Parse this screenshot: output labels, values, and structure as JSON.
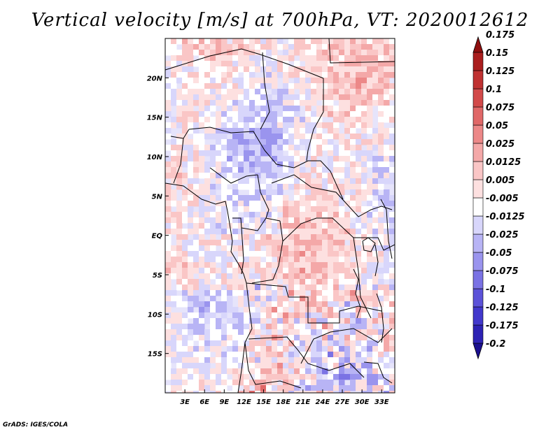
{
  "title": "Vertical velocity [m/s] at 700hPa, VT: 2020012612",
  "credit": "GrADS: IGES/COLA",
  "map": {
    "lon_range": [
      0,
      35
    ],
    "lat_range": [
      -20,
      25
    ],
    "lat_ticks": [
      {
        "lat": 20,
        "label": "20N"
      },
      {
        "lat": 15,
        "label": "15N"
      },
      {
        "lat": 10,
        "label": "10N"
      },
      {
        "lat": 5,
        "label": "5N"
      },
      {
        "lat": 0,
        "label": "EQ"
      },
      {
        "lat": -5,
        "label": "5S"
      },
      {
        "lat": -10,
        "label": "10S"
      },
      {
        "lat": -15,
        "label": "15S"
      }
    ],
    "lon_ticks": [
      {
        "lon": 3,
        "label": "3E"
      },
      {
        "lon": 6,
        "label": "6E"
      },
      {
        "lon": 9,
        "label": "9E"
      },
      {
        "lon": 12,
        "label": "12E"
      },
      {
        "lon": 15,
        "label": "15E"
      },
      {
        "lon": 18,
        "label": "18E"
      },
      {
        "lon": 21,
        "label": "21E"
      },
      {
        "lon": 24,
        "label": "24E"
      },
      {
        "lon": 27,
        "label": "27E"
      },
      {
        "lon": 30,
        "label": "30E"
      },
      {
        "lon": 33,
        "label": "33E"
      }
    ]
  },
  "colorbar": {
    "colors": [
      "#1a0f8f",
      "#2d22b4",
      "#4238cc",
      "#5c52d8",
      "#7a72e4",
      "#9a94ee",
      "#b8b4f5",
      "#d8d6fb",
      "#ffffff",
      "#fde0e0",
      "#fac6c6",
      "#f4a8a8",
      "#ec8888",
      "#e06868",
      "#d24a4a",
      "#c03232",
      "#aa1e1e",
      "#8f0f0f"
    ],
    "labels": [
      "-0.2",
      "-0.175",
      "-0.125",
      "-0.1",
      "-0.075",
      "-0.05",
      "-0.025",
      "-0.0125",
      "-0.005",
      "0.005",
      "0.0125",
      "0.025",
      "0.05",
      "0.075",
      "0.1",
      "0.125",
      "0.15",
      "0.175"
    ]
  }
}
